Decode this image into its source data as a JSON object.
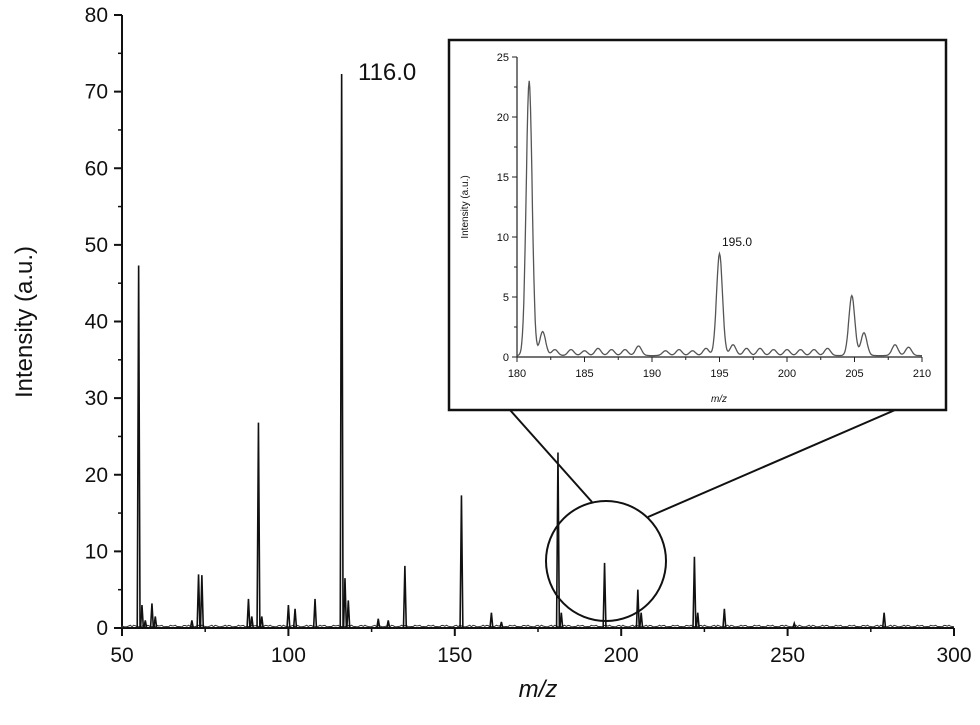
{
  "chart_data": [
    {
      "type": "line",
      "xlabel": "m/z",
      "ylabel": "Intensity (a.u.)",
      "xlim": [
        50,
        300
      ],
      "ylim": [
        0,
        80
      ],
      "x_ticks": [
        "50",
        "100",
        "150",
        "200",
        "250",
        "300"
      ],
      "y_ticks": [
        "0",
        "10",
        "20",
        "30",
        "40",
        "50",
        "60",
        "70",
        "80"
      ],
      "grid": false,
      "annotations": [
        {
          "text": "116.0",
          "x": 116.0,
          "y": 72.3
        }
      ],
      "peaks": [
        {
          "x": 55.0,
          "y": 47.3
        },
        {
          "x": 56.0,
          "y": 3.0
        },
        {
          "x": 57.0,
          "y": 1.0
        },
        {
          "x": 59.0,
          "y": 3.2
        },
        {
          "x": 60.0,
          "y": 1.5
        },
        {
          "x": 71.0,
          "y": 1.0
        },
        {
          "x": 73.0,
          "y": 7.0
        },
        {
          "x": 74.0,
          "y": 6.9
        },
        {
          "x": 88.0,
          "y": 3.8
        },
        {
          "x": 89.0,
          "y": 1.5
        },
        {
          "x": 91.0,
          "y": 26.8
        },
        {
          "x": 92.0,
          "y": 1.5
        },
        {
          "x": 100.0,
          "y": 3.0
        },
        {
          "x": 102.0,
          "y": 2.5
        },
        {
          "x": 108.0,
          "y": 3.8
        },
        {
          "x": 116.0,
          "y": 72.3
        },
        {
          "x": 117.0,
          "y": 6.5
        },
        {
          "x": 118.0,
          "y": 3.6
        },
        {
          "x": 127.0,
          "y": 1.2
        },
        {
          "x": 130.0,
          "y": 1.0
        },
        {
          "x": 135.0,
          "y": 8.1
        },
        {
          "x": 152.0,
          "y": 17.3
        },
        {
          "x": 161.0,
          "y": 2.0
        },
        {
          "x": 164.0,
          "y": 0.8
        },
        {
          "x": 181.0,
          "y": 22.9
        },
        {
          "x": 182.0,
          "y": 2.0
        },
        {
          "x": 195.0,
          "y": 8.5
        },
        {
          "x": 205.0,
          "y": 5.0
        },
        {
          "x": 206.0,
          "y": 2.0
        },
        {
          "x": 222.0,
          "y": 9.3
        },
        {
          "x": 223.0,
          "y": 2.0
        },
        {
          "x": 231.0,
          "y": 2.5
        },
        {
          "x": 252.0,
          "y": 0.6
        },
        {
          "x": 279.0,
          "y": 2.0
        }
      ]
    },
    {
      "type": "line",
      "xlabel": "m/z",
      "ylabel": "Intensity (a.u.)",
      "xlim": [
        180,
        210
      ],
      "ylim": [
        0,
        25
      ],
      "x_ticks": [
        "180",
        "185",
        "190",
        "195",
        "200",
        "205",
        "210"
      ],
      "y_ticks": [
        "0",
        "5",
        "10",
        "15",
        "20",
        "25"
      ],
      "grid": false,
      "annotations": [
        {
          "text": "195.0",
          "x": 195.0,
          "y": 8.5
        }
      ],
      "peaks": [
        {
          "x": 180.9,
          "y": 22.9
        },
        {
          "x": 181.9,
          "y": 2.0
        },
        {
          "x": 182.8,
          "y": 0.5
        },
        {
          "x": 184.0,
          "y": 0.5
        },
        {
          "x": 185.0,
          "y": 0.4
        },
        {
          "x": 186.0,
          "y": 0.6
        },
        {
          "x": 187.0,
          "y": 0.5
        },
        {
          "x": 188.0,
          "y": 0.5
        },
        {
          "x": 189.0,
          "y": 0.8
        },
        {
          "x": 191.0,
          "y": 0.4
        },
        {
          "x": 192.0,
          "y": 0.5
        },
        {
          "x": 193.0,
          "y": 0.4
        },
        {
          "x": 194.0,
          "y": 0.6
        },
        {
          "x": 195.0,
          "y": 8.5
        },
        {
          "x": 196.0,
          "y": 0.9
        },
        {
          "x": 197.0,
          "y": 0.6
        },
        {
          "x": 198.0,
          "y": 0.6
        },
        {
          "x": 199.0,
          "y": 0.5
        },
        {
          "x": 200.0,
          "y": 0.5
        },
        {
          "x": 201.0,
          "y": 0.5
        },
        {
          "x": 202.0,
          "y": 0.5
        },
        {
          "x": 203.0,
          "y": 0.6
        },
        {
          "x": 204.8,
          "y": 5.0
        },
        {
          "x": 205.7,
          "y": 1.9
        },
        {
          "x": 208.0,
          "y": 0.9
        },
        {
          "x": 209.0,
          "y": 0.7
        }
      ]
    }
  ]
}
